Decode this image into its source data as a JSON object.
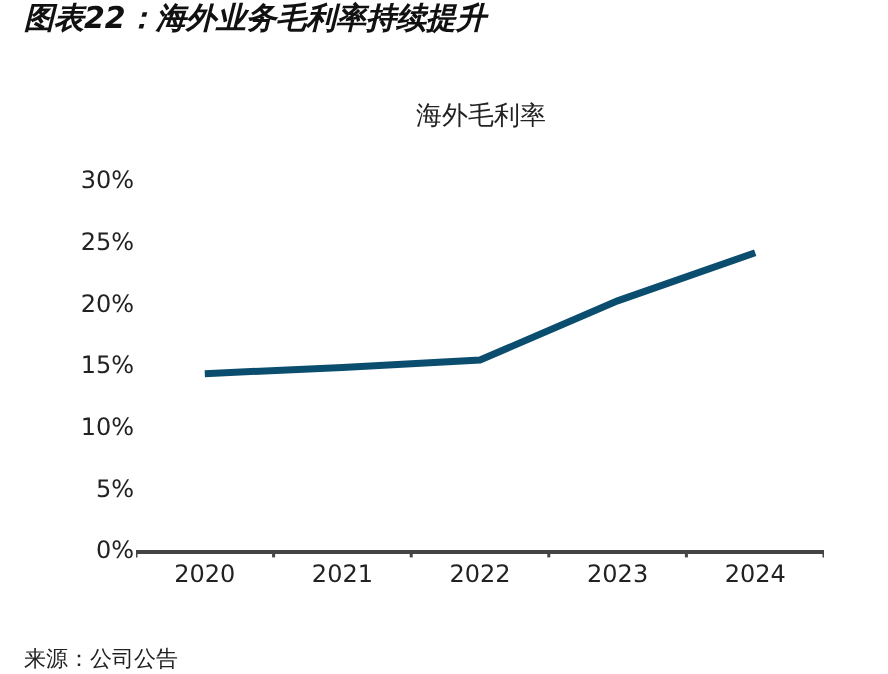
{
  "chart_data": {
    "type": "line",
    "title": "图表22：海外业务毛利率持续提升",
    "subtitle": "海外毛利率",
    "categories": [
      "2020",
      "2021",
      "2022",
      "2023",
      "2024"
    ],
    "series": [
      {
        "color": "#0b4d6e",
        "values": [
          14.3,
          14.8,
          15.4,
          20.2,
          24.1
        ]
      }
    ],
    "ylim": [
      0,
      30
    ],
    "yticks": [
      {
        "value": 0,
        "label": "0%"
      },
      {
        "value": 5,
        "label": "5%"
      },
      {
        "value": 10,
        "label": "10%"
      },
      {
        "value": 15,
        "label": "15%"
      },
      {
        "value": 20,
        "label": "20%"
      },
      {
        "value": 25,
        "label": "25%"
      },
      {
        "value": 30,
        "label": "30%"
      }
    ],
    "grid": false,
    "marker": "none",
    "line_style": "solid",
    "annotations": [
      "来源：公司公告"
    ]
  }
}
